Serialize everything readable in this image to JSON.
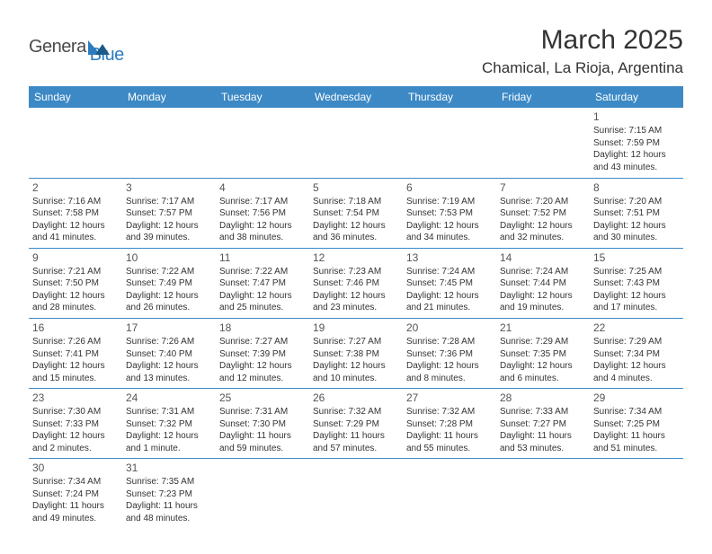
{
  "logo": {
    "text_dark": "Genera",
    "text_blue": "Blue",
    "dark_color": "#4a4a4a",
    "blue_color": "#2b7bbf"
  },
  "header": {
    "month_title": "March 2025",
    "location": "Chamical, La Rioja, Argentina"
  },
  "style": {
    "header_bg": "#3c89c5",
    "header_text": "#ffffff",
    "border_color": "#3c89c5",
    "page_bg": "#ffffff",
    "title_fontsize": 30,
    "location_fontsize": 17,
    "th_fontsize": 12,
    "cell_fontsize": 10,
    "daynum_fontsize": 12
  },
  "weekdays": [
    "Sunday",
    "Monday",
    "Tuesday",
    "Wednesday",
    "Thursday",
    "Friday",
    "Saturday"
  ],
  "weeks": [
    [
      null,
      null,
      null,
      null,
      null,
      null,
      {
        "d": "1",
        "sr": "Sunrise: 7:15 AM",
        "ss": "Sunset: 7:59 PM",
        "dl1": "Daylight: 12 hours",
        "dl2": "and 43 minutes."
      }
    ],
    [
      {
        "d": "2",
        "sr": "Sunrise: 7:16 AM",
        "ss": "Sunset: 7:58 PM",
        "dl1": "Daylight: 12 hours",
        "dl2": "and 41 minutes."
      },
      {
        "d": "3",
        "sr": "Sunrise: 7:17 AM",
        "ss": "Sunset: 7:57 PM",
        "dl1": "Daylight: 12 hours",
        "dl2": "and 39 minutes."
      },
      {
        "d": "4",
        "sr": "Sunrise: 7:17 AM",
        "ss": "Sunset: 7:56 PM",
        "dl1": "Daylight: 12 hours",
        "dl2": "and 38 minutes."
      },
      {
        "d": "5",
        "sr": "Sunrise: 7:18 AM",
        "ss": "Sunset: 7:54 PM",
        "dl1": "Daylight: 12 hours",
        "dl2": "and 36 minutes."
      },
      {
        "d": "6",
        "sr": "Sunrise: 7:19 AM",
        "ss": "Sunset: 7:53 PM",
        "dl1": "Daylight: 12 hours",
        "dl2": "and 34 minutes."
      },
      {
        "d": "7",
        "sr": "Sunrise: 7:20 AM",
        "ss": "Sunset: 7:52 PM",
        "dl1": "Daylight: 12 hours",
        "dl2": "and 32 minutes."
      },
      {
        "d": "8",
        "sr": "Sunrise: 7:20 AM",
        "ss": "Sunset: 7:51 PM",
        "dl1": "Daylight: 12 hours",
        "dl2": "and 30 minutes."
      }
    ],
    [
      {
        "d": "9",
        "sr": "Sunrise: 7:21 AM",
        "ss": "Sunset: 7:50 PM",
        "dl1": "Daylight: 12 hours",
        "dl2": "and 28 minutes."
      },
      {
        "d": "10",
        "sr": "Sunrise: 7:22 AM",
        "ss": "Sunset: 7:49 PM",
        "dl1": "Daylight: 12 hours",
        "dl2": "and 26 minutes."
      },
      {
        "d": "11",
        "sr": "Sunrise: 7:22 AM",
        "ss": "Sunset: 7:47 PM",
        "dl1": "Daylight: 12 hours",
        "dl2": "and 25 minutes."
      },
      {
        "d": "12",
        "sr": "Sunrise: 7:23 AM",
        "ss": "Sunset: 7:46 PM",
        "dl1": "Daylight: 12 hours",
        "dl2": "and 23 minutes."
      },
      {
        "d": "13",
        "sr": "Sunrise: 7:24 AM",
        "ss": "Sunset: 7:45 PM",
        "dl1": "Daylight: 12 hours",
        "dl2": "and 21 minutes."
      },
      {
        "d": "14",
        "sr": "Sunrise: 7:24 AM",
        "ss": "Sunset: 7:44 PM",
        "dl1": "Daylight: 12 hours",
        "dl2": "and 19 minutes."
      },
      {
        "d": "15",
        "sr": "Sunrise: 7:25 AM",
        "ss": "Sunset: 7:43 PM",
        "dl1": "Daylight: 12 hours",
        "dl2": "and 17 minutes."
      }
    ],
    [
      {
        "d": "16",
        "sr": "Sunrise: 7:26 AM",
        "ss": "Sunset: 7:41 PM",
        "dl1": "Daylight: 12 hours",
        "dl2": "and 15 minutes."
      },
      {
        "d": "17",
        "sr": "Sunrise: 7:26 AM",
        "ss": "Sunset: 7:40 PM",
        "dl1": "Daylight: 12 hours",
        "dl2": "and 13 minutes."
      },
      {
        "d": "18",
        "sr": "Sunrise: 7:27 AM",
        "ss": "Sunset: 7:39 PM",
        "dl1": "Daylight: 12 hours",
        "dl2": "and 12 minutes."
      },
      {
        "d": "19",
        "sr": "Sunrise: 7:27 AM",
        "ss": "Sunset: 7:38 PM",
        "dl1": "Daylight: 12 hours",
        "dl2": "and 10 minutes."
      },
      {
        "d": "20",
        "sr": "Sunrise: 7:28 AM",
        "ss": "Sunset: 7:36 PM",
        "dl1": "Daylight: 12 hours",
        "dl2": "and 8 minutes."
      },
      {
        "d": "21",
        "sr": "Sunrise: 7:29 AM",
        "ss": "Sunset: 7:35 PM",
        "dl1": "Daylight: 12 hours",
        "dl2": "and 6 minutes."
      },
      {
        "d": "22",
        "sr": "Sunrise: 7:29 AM",
        "ss": "Sunset: 7:34 PM",
        "dl1": "Daylight: 12 hours",
        "dl2": "and 4 minutes."
      }
    ],
    [
      {
        "d": "23",
        "sr": "Sunrise: 7:30 AM",
        "ss": "Sunset: 7:33 PM",
        "dl1": "Daylight: 12 hours",
        "dl2": "and 2 minutes."
      },
      {
        "d": "24",
        "sr": "Sunrise: 7:31 AM",
        "ss": "Sunset: 7:32 PM",
        "dl1": "Daylight: 12 hours",
        "dl2": "and 1 minute."
      },
      {
        "d": "25",
        "sr": "Sunrise: 7:31 AM",
        "ss": "Sunset: 7:30 PM",
        "dl1": "Daylight: 11 hours",
        "dl2": "and 59 minutes."
      },
      {
        "d": "26",
        "sr": "Sunrise: 7:32 AM",
        "ss": "Sunset: 7:29 PM",
        "dl1": "Daylight: 11 hours",
        "dl2": "and 57 minutes."
      },
      {
        "d": "27",
        "sr": "Sunrise: 7:32 AM",
        "ss": "Sunset: 7:28 PM",
        "dl1": "Daylight: 11 hours",
        "dl2": "and 55 minutes."
      },
      {
        "d": "28",
        "sr": "Sunrise: 7:33 AM",
        "ss": "Sunset: 7:27 PM",
        "dl1": "Daylight: 11 hours",
        "dl2": "and 53 minutes."
      },
      {
        "d": "29",
        "sr": "Sunrise: 7:34 AM",
        "ss": "Sunset: 7:25 PM",
        "dl1": "Daylight: 11 hours",
        "dl2": "and 51 minutes."
      }
    ],
    [
      {
        "d": "30",
        "sr": "Sunrise: 7:34 AM",
        "ss": "Sunset: 7:24 PM",
        "dl1": "Daylight: 11 hours",
        "dl2": "and 49 minutes."
      },
      {
        "d": "31",
        "sr": "Sunrise: 7:35 AM",
        "ss": "Sunset: 7:23 PM",
        "dl1": "Daylight: 11 hours",
        "dl2": "and 48 minutes."
      },
      null,
      null,
      null,
      null,
      null
    ]
  ]
}
